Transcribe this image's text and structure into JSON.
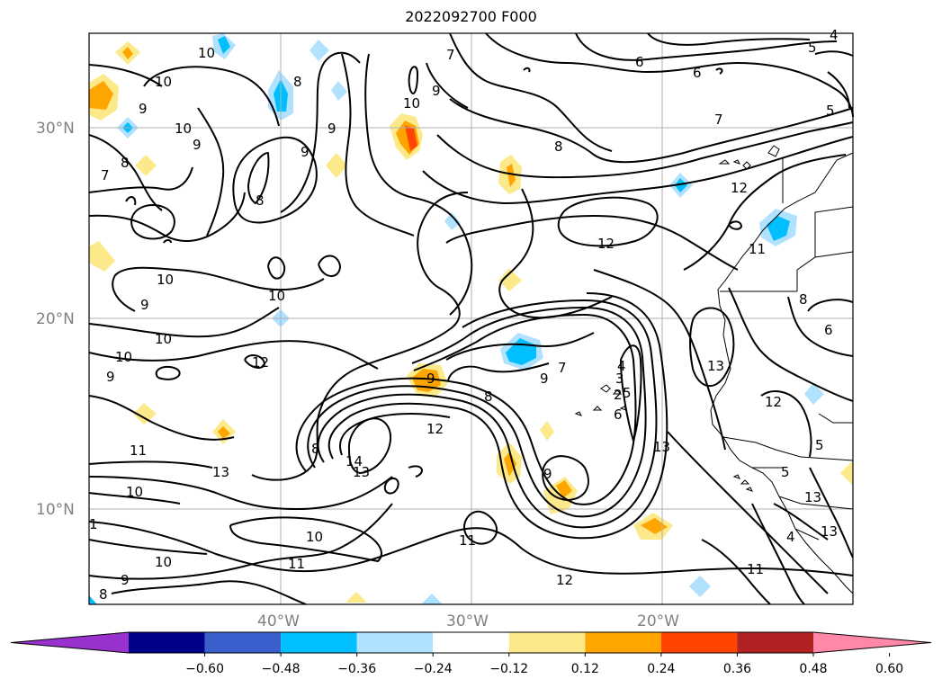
{
  "title": "2022092700 F000",
  "map": {
    "lat_labels": [
      "30°N",
      "20°N",
      "10°N"
    ],
    "lon_labels": [
      "40°W",
      "30°W",
      "20°W"
    ],
    "grid": true
  },
  "colorbar": {
    "ticks": [
      "−0.60",
      "−0.48",
      "−0.36",
      "−0.24",
      "−0.12",
      "0.12",
      "0.24",
      "0.36",
      "0.48",
      "0.60"
    ],
    "colors": [
      "#9932cc",
      "#00008b",
      "#3a5fcd",
      "#00bfff",
      "#b0e2ff",
      "#ffffff",
      "#fce98a",
      "#ffa500",
      "#ff4500",
      "#b22222",
      "#ff88a8"
    ],
    "extend": "both"
  },
  "contour_labels": [
    "10",
    "10",
    "9",
    "10",
    "9",
    "7",
    "8",
    "9",
    "8",
    "9",
    "10",
    "9",
    "8",
    "7",
    "6",
    "6",
    "5",
    "4",
    "5",
    "7",
    "8",
    "12",
    "12",
    "11",
    "12",
    "10",
    "9",
    "10",
    "10",
    "9",
    "10",
    "8",
    "9",
    "12",
    "13",
    "14",
    "13",
    "9",
    "8",
    "6",
    "13",
    "13",
    "9",
    "7",
    "12",
    "13",
    "13",
    "11",
    "10",
    "10",
    "9",
    "8",
    "1",
    "11",
    "10",
    "11",
    "12",
    "11",
    "4",
    "5",
    "6",
    "5",
    "8",
    "2",
    "3",
    "4",
    "5"
  ]
}
